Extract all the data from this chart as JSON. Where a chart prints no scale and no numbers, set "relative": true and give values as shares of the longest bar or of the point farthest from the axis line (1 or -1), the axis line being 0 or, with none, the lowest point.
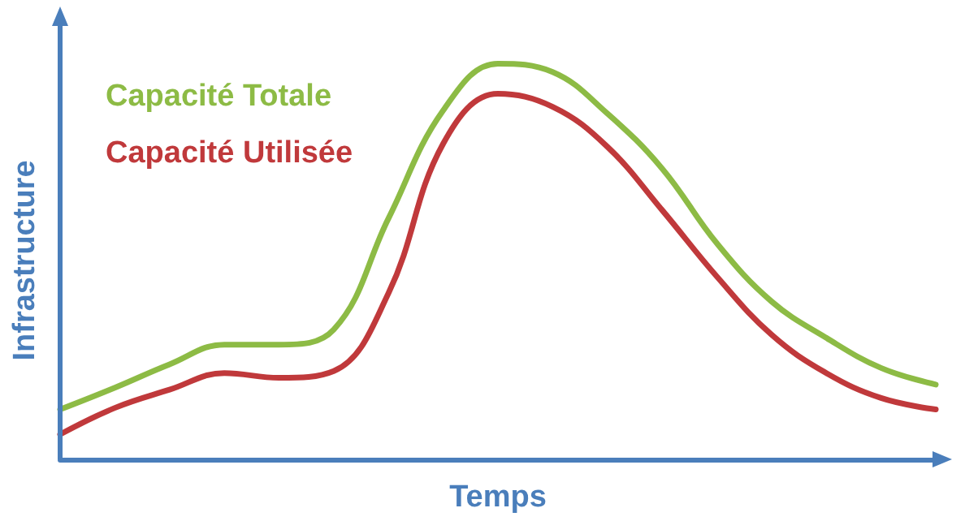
{
  "chart_data": {
    "type": "line",
    "relative": true,
    "xlabel": "Temps",
    "ylabel": "Infrastructure",
    "categories": [
      null,
      null,
      null,
      null,
      null,
      null,
      null,
      null,
      null,
      null,
      null,
      null,
      null,
      null,
      null,
      null,
      null
    ],
    "series": [
      {
        "name": "Capacité Totale",
        "color": "#8dbb45",
        "values": [
          0.126,
          0.181,
          0.24,
          0.29,
          0.29,
          0.328,
          0.609,
          0.882,
          1,
          0.979,
          0.874,
          0.735,
          0.546,
          0.399,
          0.307,
          0.231,
          0.189
        ]
      },
      {
        "name": "Capacité Utilisée",
        "color": "#c0393b",
        "values": [
          0.063,
          0.13,
          0.176,
          0.218,
          0.206,
          0.223,
          0.42,
          0.798,
          0.924,
          0.891,
          0.79,
          0.63,
          0.462,
          0.315,
          0.218,
          0.155,
          0.126
        ]
      }
    ],
    "legend": "top left",
    "grid": false,
    "marker": "none",
    "line_style": "solid"
  }
}
